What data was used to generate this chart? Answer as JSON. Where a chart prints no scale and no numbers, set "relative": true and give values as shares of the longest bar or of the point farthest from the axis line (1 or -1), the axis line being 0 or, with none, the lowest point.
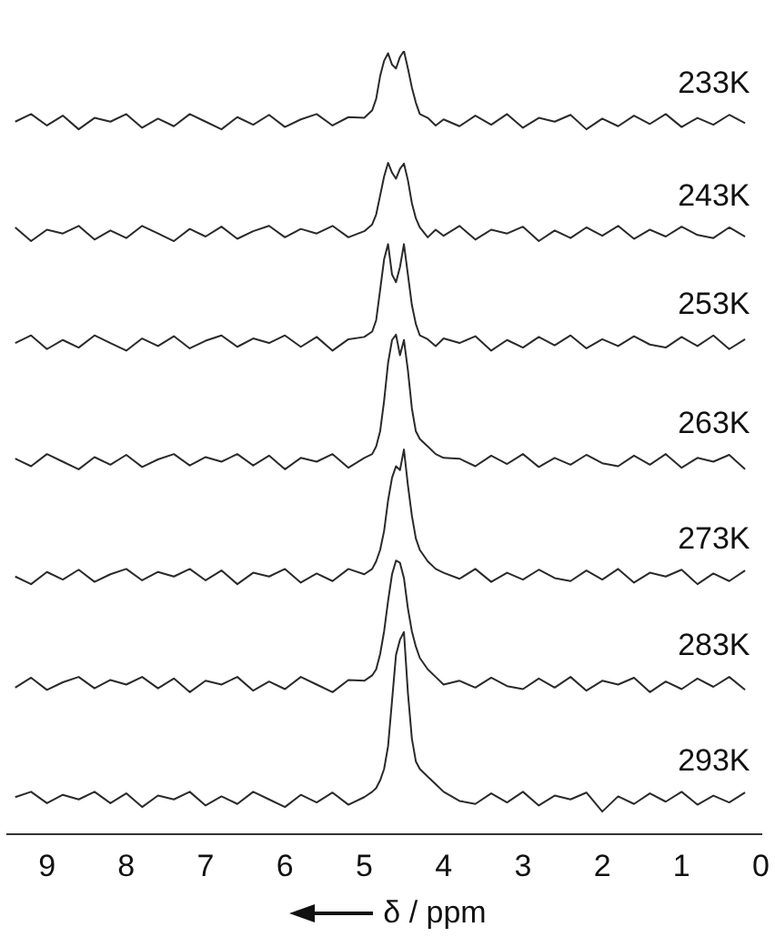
{
  "chart_data": {
    "type": "line",
    "relative": true,
    "xlabel": "δ / ppm",
    "xlim": [
      9.5,
      0
    ],
    "xticks": [
      9,
      8,
      7,
      6,
      5,
      4,
      3,
      2,
      1,
      0
    ],
    "grid": false,
    "legend": false,
    "tick_labels": "x",
    "marker": "none",
    "line_style": "solid",
    "x": [
      9.4,
      9.2,
      9.0,
      8.8,
      8.6,
      8.4,
      8.2,
      8.0,
      7.8,
      7.6,
      7.4,
      7.2,
      7.0,
      6.8,
      6.6,
      6.4,
      6.2,
      6.0,
      5.8,
      5.6,
      5.4,
      5.2,
      5.0,
      4.9,
      4.85,
      4.8,
      4.75,
      4.7,
      4.65,
      4.6,
      4.55,
      4.5,
      4.45,
      4.4,
      4.35,
      4.3,
      4.2,
      4.1,
      4.0,
      3.8,
      3.6,
      3.4,
      3.2,
      3.0,
      2.8,
      2.6,
      2.4,
      2.2,
      2.0,
      1.8,
      1.6,
      1.4,
      1.2,
      1.0,
      0.8,
      0.6,
      0.4,
      0.2
    ],
    "series": [
      {
        "name": "233K",
        "color": "#2a2a2a",
        "values": [
          0.907,
          0.917,
          0.902,
          0.915,
          0.897,
          0.912,
          0.907,
          0.917,
          0.899,
          0.911,
          0.901,
          0.917,
          0.907,
          0.897,
          0.913,
          0.903,
          0.916,
          0.9,
          0.91,
          0.917,
          0.902,
          0.913,
          0.912,
          0.922,
          0.937,
          0.967,
          0.987,
          0.997,
          0.982,
          0.977,
          0.992,
          1.0,
          0.977,
          0.952,
          0.932,
          0.917,
          0.912,
          0.902,
          0.91,
          0.901,
          0.915,
          0.903,
          0.917,
          0.899,
          0.912,
          0.907,
          0.916,
          0.897,
          0.911,
          0.901,
          0.915,
          0.904,
          0.917,
          0.9,
          0.912,
          0.903,
          0.916,
          0.905
        ]
      },
      {
        "name": "243K",
        "color": "#2a2a2a",
        "values": [
          0.768,
          0.75,
          0.765,
          0.76,
          0.77,
          0.752,
          0.764,
          0.754,
          0.77,
          0.76,
          0.75,
          0.766,
          0.756,
          0.769,
          0.753,
          0.763,
          0.77,
          0.755,
          0.766,
          0.76,
          0.77,
          0.755,
          0.763,
          0.772,
          0.785,
          0.81,
          0.835,
          0.853,
          0.84,
          0.832,
          0.845,
          0.852,
          0.83,
          0.8,
          0.78,
          0.768,
          0.755,
          0.765,
          0.757,
          0.77,
          0.752,
          0.765,
          0.76,
          0.769,
          0.75,
          0.764,
          0.754,
          0.768,
          0.757,
          0.77,
          0.753,
          0.765,
          0.756,
          0.769,
          0.758,
          0.754,
          0.768,
          0.756
        ]
      },
      {
        "name": "253K",
        "color": "#2a2a2a",
        "values": [
          0.616,
          0.626,
          0.608,
          0.62,
          0.61,
          0.626,
          0.616,
          0.606,
          0.622,
          0.612,
          0.625,
          0.609,
          0.619,
          0.626,
          0.611,
          0.622,
          0.616,
          0.626,
          0.611,
          0.624,
          0.606,
          0.621,
          0.624,
          0.631,
          0.646,
          0.686,
          0.726,
          0.746,
          0.706,
          0.696,
          0.716,
          0.746,
          0.706,
          0.666,
          0.641,
          0.626,
          0.621,
          0.612,
          0.622,
          0.616,
          0.625,
          0.606,
          0.62,
          0.61,
          0.624,
          0.613,
          0.626,
          0.609,
          0.621,
          0.612,
          0.625,
          0.614,
          0.61,
          0.624,
          0.612,
          0.626,
          0.608,
          0.621
        ]
      },
      {
        "name": "263K",
        "color": "#2a2a2a",
        "values": [
          0.464,
          0.454,
          0.47,
          0.46,
          0.45,
          0.466,
          0.456,
          0.469,
          0.453,
          0.463,
          0.47,
          0.455,
          0.466,
          0.46,
          0.47,
          0.455,
          0.468,
          0.45,
          0.465,
          0.46,
          0.47,
          0.452,
          0.465,
          0.47,
          0.48,
          0.5,
          0.54,
          0.59,
          0.62,
          0.627,
          0.6,
          0.62,
          0.58,
          0.53,
          0.5,
          0.49,
          0.48,
          0.47,
          0.465,
          0.464,
          0.454,
          0.468,
          0.457,
          0.47,
          0.453,
          0.465,
          0.456,
          0.469,
          0.458,
          0.454,
          0.468,
          0.456,
          0.47,
          0.452,
          0.465,
          0.46,
          0.469,
          0.45
        ]
      },
      {
        "name": "273K",
        "color": "#2a2a2a",
        "values": [
          0.309,
          0.299,
          0.315,
          0.305,
          0.318,
          0.302,
          0.312,
          0.319,
          0.304,
          0.315,
          0.309,
          0.319,
          0.304,
          0.317,
          0.299,
          0.314,
          0.309,
          0.319,
          0.301,
          0.313,
          0.303,
          0.319,
          0.312,
          0.319,
          0.329,
          0.344,
          0.369,
          0.409,
          0.439,
          0.454,
          0.449,
          0.476,
          0.429,
          0.389,
          0.359,
          0.344,
          0.329,
          0.319,
          0.314,
          0.306,
          0.319,
          0.302,
          0.314,
          0.305,
          0.318,
          0.307,
          0.303,
          0.317,
          0.305,
          0.319,
          0.301,
          0.314,
          0.309,
          0.318,
          0.299,
          0.313,
          0.303,
          0.317
        ]
      },
      {
        "name": "283K",
        "color": "#2a2a2a",
        "values": [
          0.163,
          0.176,
          0.16,
          0.17,
          0.177,
          0.162,
          0.173,
          0.167,
          0.177,
          0.162,
          0.175,
          0.157,
          0.172,
          0.167,
          0.177,
          0.159,
          0.171,
          0.161,
          0.177,
          0.167,
          0.157,
          0.173,
          0.172,
          0.179,
          0.187,
          0.207,
          0.237,
          0.277,
          0.312,
          0.33,
          0.327,
          0.307,
          0.267,
          0.237,
          0.217,
          0.202,
          0.187,
          0.177,
          0.167,
          0.172,
          0.163,
          0.176,
          0.165,
          0.161,
          0.175,
          0.163,
          0.177,
          0.159,
          0.172,
          0.167,
          0.176,
          0.157,
          0.171,
          0.161,
          0.175,
          0.164,
          0.177,
          0.16
        ]
      },
      {
        "name": "293K",
        "color": "#2a2a2a",
        "values": [
          0.019,
          0.026,
          0.011,
          0.022,
          0.016,
          0.026,
          0.011,
          0.024,
          0.006,
          0.021,
          0.016,
          0.026,
          0.008,
          0.02,
          0.01,
          0.026,
          0.016,
          0.006,
          0.022,
          0.012,
          0.025,
          0.009,
          0.019,
          0.026,
          0.031,
          0.041,
          0.056,
          0.086,
          0.146,
          0.206,
          0.226,
          0.236,
          0.156,
          0.096,
          0.066,
          0.056,
          0.046,
          0.036,
          0.026,
          0.014,
          0.01,
          0.024,
          0.012,
          0.026,
          0.008,
          0.021,
          0.016,
          0.025,
          0.0,
          0.02,
          0.01,
          0.024,
          0.013,
          0.026,
          0.009,
          0.021,
          0.012,
          0.025
        ]
      }
    ]
  }
}
